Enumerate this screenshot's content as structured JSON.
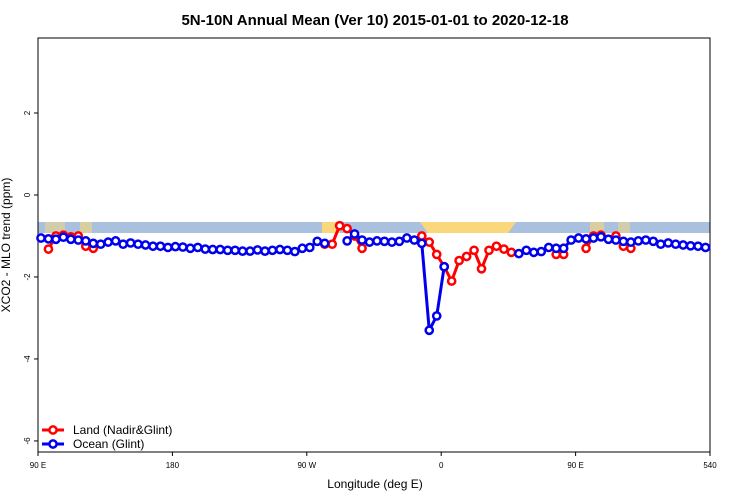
{
  "chart_data": {
    "type": "line",
    "title": "5N-10N Annual Mean (Ver 10)   2015-01-01 to 2020-12-18",
    "x_label": "Longitude (deg E)",
    "y_label": "XCO2 - MLO trend (ppm)",
    "xlim": [
      90,
      540
    ],
    "ylim": [
      -6.27,
      3.83
    ],
    "xticks": [
      {
        "value": 90,
        "label": "90 E"
      },
      180,
      {
        "value": 270,
        "label": "90 W"
      },
      {
        "value": 360,
        "label": "0"
      },
      {
        "value": 450,
        "label": "90 E"
      },
      540
    ],
    "yticks": [
      2,
      0,
      -2,
      -4,
      -6
    ],
    "legend": "bottom-left",
    "x": [
      92,
      97,
      102,
      107,
      112,
      117,
      122,
      127,
      132,
      137,
      142,
      147,
      152,
      157,
      162,
      167,
      172,
      177,
      182,
      187,
      192,
      197,
      202,
      207,
      212,
      217,
      222,
      227,
      232,
      237,
      242,
      247,
      252,
      257,
      262,
      267,
      272,
      277,
      282,
      287,
      292,
      297,
      302,
      307,
      312,
      317,
      322,
      327,
      332,
      337,
      342,
      347,
      352,
      357,
      362,
      367,
      372,
      377,
      382,
      387,
      392,
      397,
      402,
      407,
      412,
      417,
      422,
      427,
      432,
      437,
      442,
      447,
      452,
      457,
      462,
      467,
      472,
      477,
      482,
      487,
      492,
      497,
      502,
      507,
      512,
      517,
      522,
      527,
      532,
      537
    ],
    "series": [
      {
        "name": "Land (Nadir&Glint)",
        "color": "#ff0000",
        "values": [
          null,
          -1.32,
          -1.0,
          -0.98,
          -1.02,
          -1.0,
          -1.25,
          -1.3,
          null,
          null,
          null,
          null,
          null,
          null,
          null,
          null,
          null,
          null,
          null,
          null,
          null,
          null,
          null,
          null,
          null,
          null,
          null,
          null,
          null,
          null,
          null,
          null,
          null,
          null,
          null,
          null,
          null,
          null,
          -1.2,
          -1.2,
          -0.75,
          -0.82,
          -1.0,
          -1.3,
          null,
          null,
          null,
          null,
          null,
          null,
          null,
          -1.0,
          -1.15,
          -1.45,
          -1.75,
          -2.1,
          -1.6,
          -1.5,
          -1.35,
          -1.8,
          -1.35,
          -1.25,
          -1.32,
          -1.4,
          null,
          null,
          null,
          null,
          null,
          -1.45,
          -1.45,
          null,
          null,
          -1.3,
          -1.0,
          -0.98,
          null,
          -1.0,
          -1.25,
          -1.3,
          null,
          null,
          null,
          null,
          null,
          null,
          null,
          null,
          null,
          null
        ]
      },
      {
        "name": "Ocean (Glint)",
        "color": "#0000ee",
        "values": [
          -1.05,
          -1.07,
          -1.08,
          -1.03,
          -1.08,
          -1.1,
          -1.12,
          -1.18,
          -1.2,
          -1.15,
          -1.12,
          -1.2,
          -1.17,
          -1.2,
          -1.22,
          -1.25,
          -1.25,
          -1.28,
          -1.26,
          -1.27,
          -1.3,
          -1.28,
          -1.32,
          -1.33,
          -1.33,
          -1.35,
          -1.35,
          -1.37,
          -1.37,
          -1.34,
          -1.37,
          -1.35,
          -1.33,
          -1.35,
          -1.38,
          -1.3,
          -1.28,
          -1.13,
          -1.18,
          null,
          null,
          -1.12,
          -0.95,
          -1.1,
          -1.15,
          -1.12,
          -1.13,
          -1.15,
          -1.13,
          -1.05,
          -1.1,
          -1.18,
          -3.3,
          -2.95,
          -1.75,
          null,
          null,
          null,
          null,
          null,
          null,
          null,
          null,
          null,
          -1.43,
          -1.35,
          -1.4,
          -1.38,
          -1.28,
          -1.3,
          -1.3,
          -1.1,
          -1.05,
          -1.07,
          -1.05,
          -1.02,
          -1.08,
          -1.1,
          -1.13,
          -1.15,
          -1.12,
          -1.1,
          -1.13,
          -1.2,
          -1.17,
          -1.2,
          -1.22,
          -1.24,
          -1.25,
          -1.28
        ]
      }
    ]
  }
}
